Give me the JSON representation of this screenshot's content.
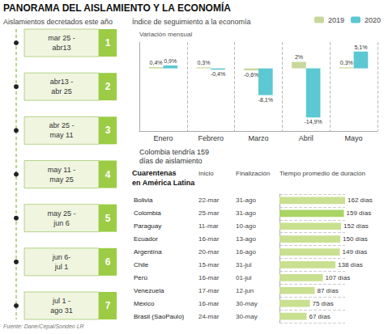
{
  "title": "PANORAMA DEL AISLAMIENTO Y LA ECONOMÍA",
  "annotations": [
    "Fuente: Dane/Cepal/Sondeo LR"
  ],
  "chart_data": [
    {
      "type": "timeline",
      "title": "Aislamientos decretados este año",
      "categories": [
        "1",
        "2",
        "3",
        "4",
        "5",
        "6",
        "7"
      ],
      "labels": [
        "mar 25 -\nabr13",
        "abr13 -\nabr 25",
        "abr 25 -\nmay 11",
        "may 11 -\nmay 25",
        "may 25 -\njun 6",
        "jun 6-\njul 1",
        "jul 1 -\nago 31"
      ],
      "color": "#9bcc44"
    },
    {
      "type": "bar",
      "title": "Índice de seguimiento a la economía",
      "ylabel": "Variación mensual",
      "categories": [
        "Enero",
        "Febrero",
        "Marzo",
        "Abril",
        "Mayo"
      ],
      "series": [
        {
          "name": "2019",
          "color": "#c8d89c",
          "values": [
            0.4,
            0.3,
            -0.6,
            2.0,
            0.3
          ],
          "value_labels": [
            "0,4%",
            "0,3%",
            "-0,6%",
            "2%",
            "0,3%"
          ]
        },
        {
          "name": "2020",
          "color": "#5bc8d2",
          "values": [
            0.9,
            -0.4,
            -8.1,
            -14.9,
            5.1
          ],
          "value_labels": [
            "0,9%",
            "-0,4%",
            "-8,1%",
            "-14,9%",
            "5,1%"
          ]
        }
      ],
      "ylim": [
        -19,
        8
      ],
      "tick_labels": "x",
      "grid": true,
      "legend": "upper right",
      "data_labels": true,
      "annotations": [
        "Colombia tendría 159\ndías de aislamiento"
      ]
    },
    {
      "type": "bar",
      "orientation": "horizontal",
      "title": "Cuarentenas\nen América Latina",
      "column_labels": [
        "Inicio",
        "Finalización",
        "Tiempo promedio de duración"
      ],
      "categories": [
        "Bolivia",
        "Colombia",
        "Paraguay",
        "Ecuador",
        "Argentína",
        "Chile",
        "Perú",
        "Venezuela",
        "México",
        "Brasil (SaoPaulo)"
      ],
      "start": [
        "22-mar",
        "25-mar",
        "11-mar",
        "16-mar",
        "20-mar",
        "15-mar",
        "16-mar",
        "17-mar",
        "16-mar",
        "24-mar"
      ],
      "end": [
        "31-ago",
        "31-ago",
        "10-ago",
        "13-ago",
        "16-ago",
        "31-jul",
        "01-jul",
        "12-jun",
        "30-may",
        "30-may"
      ],
      "values": [
        162,
        159,
        152,
        150,
        149,
        138,
        107,
        87,
        75,
        67
      ],
      "value_labels": [
        "162 días",
        "159 días",
        "152 días",
        "150 días",
        "149 días",
        "138 días",
        "107 días",
        "87 días",
        "75 días",
        "67 días"
      ],
      "colors": [
        "#c8e090",
        "#aad464",
        "#c8e090",
        "#c8e090",
        "#c8e090",
        "#c8e090",
        "#c8e090",
        "#c8e090",
        "#c8e090",
        "#c8e090"
      ],
      "xlim": [
        0,
        162
      ],
      "tick_labels": "y",
      "grid": true,
      "data_labels": true
    }
  ]
}
